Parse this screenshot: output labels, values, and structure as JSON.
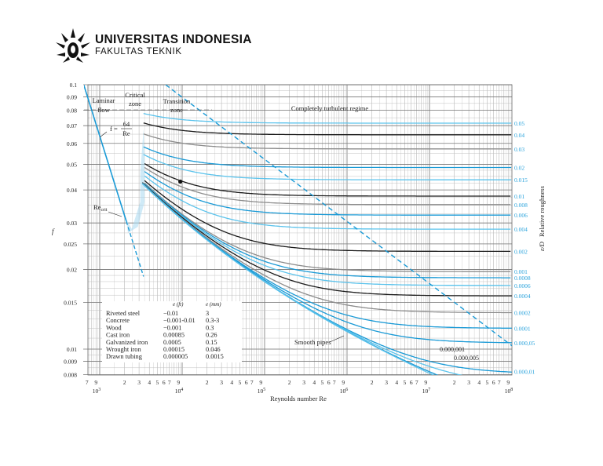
{
  "header": {
    "institution": "UNIVERSITAS INDONESIA",
    "faculty": "FAKULTAS TEKNIK"
  },
  "chart_data": {
    "type": "line",
    "xlabel": "Reynolds number Re",
    "ylabel": "f",
    "right_label": "Relative roughness",
    "right_label_symbol": "ε/D",
    "x_scale": "log",
    "y_scale": "log",
    "xlim": [
      640,
      100000000
    ],
    "ylim": [
      0.008,
      0.1
    ],
    "grid": true,
    "x_minor_tick_labels": [
      {
        "re": 700,
        "label": "7"
      },
      {
        "re": 900,
        "label": "9"
      },
      {
        "re": 2000,
        "label": "2"
      },
      {
        "re": 3000,
        "label": "3"
      },
      {
        "re": 4000,
        "label": "4"
      },
      {
        "re": 5000,
        "label": "5"
      },
      {
        "re": 6000,
        "label": "6"
      },
      {
        "re": 7000,
        "label": "7"
      },
      {
        "re": 9000,
        "label": "9"
      },
      {
        "re": 20000,
        "label": "2"
      },
      {
        "re": 30000,
        "label": "3"
      },
      {
        "re": 40000,
        "label": "4"
      },
      {
        "re": 50000,
        "label": "5"
      },
      {
        "re": 60000,
        "label": "6"
      },
      {
        "re": 70000,
        "label": "7"
      },
      {
        "re": 90000,
        "label": "9"
      },
      {
        "re": 200000,
        "label": "2"
      },
      {
        "re": 300000,
        "label": "3"
      },
      {
        "re": 400000,
        "label": "4"
      },
      {
        "re": 500000,
        "label": "5"
      },
      {
        "re": 600000,
        "label": "6"
      },
      {
        "re": 700000,
        "label": "7"
      },
      {
        "re": 900000,
        "label": "9"
      },
      {
        "re": 2000000,
        "label": "2"
      },
      {
        "re": 3000000,
        "label": "3"
      },
      {
        "re": 4000000,
        "label": "4"
      },
      {
        "re": 5000000,
        "label": "5"
      },
      {
        "re": 6000000,
        "label": "6"
      },
      {
        "re": 7000000,
        "label": "7"
      },
      {
        "re": 9000000,
        "label": "9"
      },
      {
        "re": 20000000,
        "label": "2"
      },
      {
        "re": 30000000,
        "label": "3"
      },
      {
        "re": 40000000,
        "label": "4"
      },
      {
        "re": 50000000,
        "label": "5"
      },
      {
        "re": 60000000,
        "label": "6"
      },
      {
        "re": 70000000,
        "label": "7"
      },
      {
        "re": 90000000,
        "label": "9"
      }
    ],
    "x_decade_labels": [
      {
        "re": 1000,
        "base": "10",
        "exp": "3"
      },
      {
        "re": 10000,
        "base": "10",
        "exp": "4"
      },
      {
        "re": 100000,
        "base": "10",
        "exp": "5"
      },
      {
        "re": 1000000,
        "base": "10",
        "exp": "6"
      },
      {
        "re": 10000000,
        "base": "10",
        "exp": "7"
      },
      {
        "re": 100000000,
        "base": "10",
        "exp": "8"
      }
    ],
    "y_tick_labels": [
      {
        "f": 0.1,
        "label": "0.1"
      },
      {
        "f": 0.09,
        "label": "0.09"
      },
      {
        "f": 0.08,
        "label": "0.08"
      },
      {
        "f": 0.07,
        "label": "0.07"
      },
      {
        "f": 0.06,
        "label": "0.06"
      },
      {
        "f": 0.05,
        "label": "0.05"
      },
      {
        "f": 0.04,
        "label": "0.04"
      },
      {
        "f": 0.03,
        "label": "0.03"
      },
      {
        "f": 0.025,
        "label": "0.025"
      },
      {
        "f": 0.02,
        "label": "0.02"
      },
      {
        "f": 0.015,
        "label": "0.015"
      },
      {
        "f": 0.01,
        "label": "0.01"
      },
      {
        "f": 0.009,
        "label": "0.009"
      },
      {
        "f": 0.008,
        "label": "0.008"
      }
    ],
    "series": [
      {
        "name": "0.05",
        "roughness": 0.05,
        "color": "#5bc3ec"
      },
      {
        "name": "0.04",
        "roughness": 0.04,
        "color": "#1a1a1a"
      },
      {
        "name": "0.03",
        "roughness": 0.03,
        "color": "#8c8c8c"
      },
      {
        "name": "0.02",
        "roughness": 0.02,
        "color": "#1a9ad6"
      },
      {
        "name": "0.015",
        "roughness": 0.015,
        "color": "#5bc3ec"
      },
      {
        "name": "0.01",
        "roughness": 0.01,
        "color": "#1a1a1a"
      },
      {
        "name": "0.008",
        "roughness": 0.008,
        "color": "#8c8c8c"
      },
      {
        "name": "0.006",
        "roughness": 0.006,
        "color": "#1a9ad6"
      },
      {
        "name": "0.004",
        "roughness": 0.004,
        "color": "#5bc3ec"
      },
      {
        "name": "0.002",
        "roughness": 0.002,
        "color": "#1a1a1a"
      },
      {
        "name": "0.001",
        "roughness": 0.001,
        "color": "#8c8c8c"
      },
      {
        "name": "0.0008",
        "roughness": 0.0008,
        "color": "#1a9ad6"
      },
      {
        "name": "0.0006",
        "roughness": 0.0006,
        "color": "#5bc3ec"
      },
      {
        "name": "0.0004",
        "roughness": 0.0004,
        "color": "#1a1a1a"
      },
      {
        "name": "0.0002",
        "roughness": 0.0002,
        "color": "#8c8c8c"
      },
      {
        "name": "0.0001",
        "roughness": 0.0001,
        "color": "#1a9ad6"
      },
      {
        "name": "0.000,05",
        "roughness": 5e-05,
        "color": "#1a9ad6"
      },
      {
        "name": "0.000,01",
        "roughness": 1e-05,
        "color": "#1a9ad6"
      },
      {
        "name": "0.000,005",
        "roughness": 5e-06,
        "color": "#5bc3ec",
        "label_inside": true
      },
      {
        "name": "0.000,001",
        "roughness": 1e-06,
        "color": "#1a9ad6",
        "label_inside": true
      },
      {
        "name": "Smooth pipes",
        "roughness": 0,
        "color": "#5bc3ec"
      }
    ],
    "laminar_line": {
      "equation_lhs": "f =",
      "numerator": "64",
      "denominator": "Re",
      "re_range": [
        640,
        3400
      ],
      "solid_until_re": 2100,
      "color": "#1a9ad6"
    },
    "complete_turbulence_boundary": {
      "from": {
        "re": 6300,
        "f": 0.1
      },
      "to": {
        "re": 100000000,
        "f": 0.0103
      },
      "style": "dashed",
      "color": "#1a9ad6"
    },
    "critical_zone_shading": {
      "re_range": [
        2000,
        4000
      ],
      "color": "#a8d8f0"
    },
    "marked_point": {
      "re": 9500,
      "f": 0.043
    },
    "annotations": {
      "laminar": [
        "Laminar",
        "flow"
      ],
      "critical": [
        "Critical",
        "zone"
      ],
      "transition": [
        "Transition",
        "zone"
      ],
      "turbulent": "Completely turbulent regime",
      "re_crit": "Re",
      "re_crit_sub": "crit",
      "smooth": "Smooth pipes"
    },
    "roughness_table": {
      "headers": [
        "",
        "e (ft)",
        "e (mm)"
      ],
      "rows": [
        [
          "Riveted steel",
          "−0.01",
          "3"
        ],
        [
          "Concrete",
          "−0.001-0.01",
          "0.3-3"
        ],
        [
          "Wood",
          "−0.001",
          "0.3"
        ],
        [
          "Cast iron",
          "0.00085",
          "0.26"
        ],
        [
          "Galvanized iron",
          "0.0005",
          "0.15"
        ],
        [
          "Wrought iron",
          "0.00015",
          "0.046"
        ],
        [
          "Drawn tubing",
          "0.000005",
          "0.0015"
        ]
      ]
    }
  }
}
